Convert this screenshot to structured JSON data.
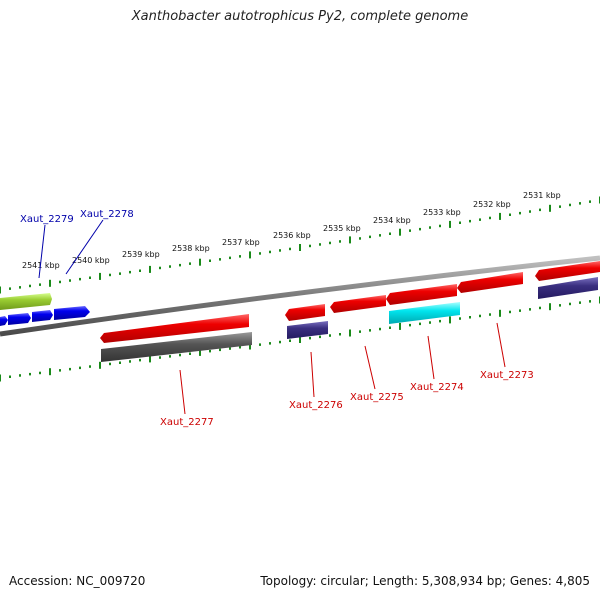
{
  "title": "Xanthobacter autotrophicus Py2, complete genome",
  "footer": {
    "accession": "Accession: NC_009720",
    "stats": "Topology: circular; Length: 5,308,934 bp; Genes: 4,805"
  },
  "ticks": [
    "2541 kbp",
    "2540 kbp",
    "2539 kbp",
    "2538 kbp",
    "2537 kbp",
    "2536 kbp",
    "2535 kbp",
    "2534 kbp",
    "2533 kbp",
    "2532 kbp",
    "2531 kbp"
  ],
  "genes": [
    {
      "label": "Xaut_2279",
      "color": "#0000aa"
    },
    {
      "label": "Xaut_2278",
      "color": "#0000aa"
    },
    {
      "label": "Xaut_2277",
      "color": "#cc0000"
    },
    {
      "label": "Xaut_2276",
      "color": "#cc0000"
    },
    {
      "label": "Xaut_2275",
      "color": "#cc0000"
    },
    {
      "label": "Xaut_2274",
      "color": "#cc0000"
    },
    {
      "label": "Xaut_2273",
      "color": "#cc0000"
    }
  ],
  "colors": {
    "backbone": "#808080",
    "ruler": "#1a8a1a",
    "gene_forward": "#0000ee",
    "gene_reverse": "#ee0000",
    "feature_green": "#9acd32",
    "feature_gray": "#555555",
    "feature_navy": "#3a2f80",
    "feature_cyan": "#00e5ee"
  }
}
